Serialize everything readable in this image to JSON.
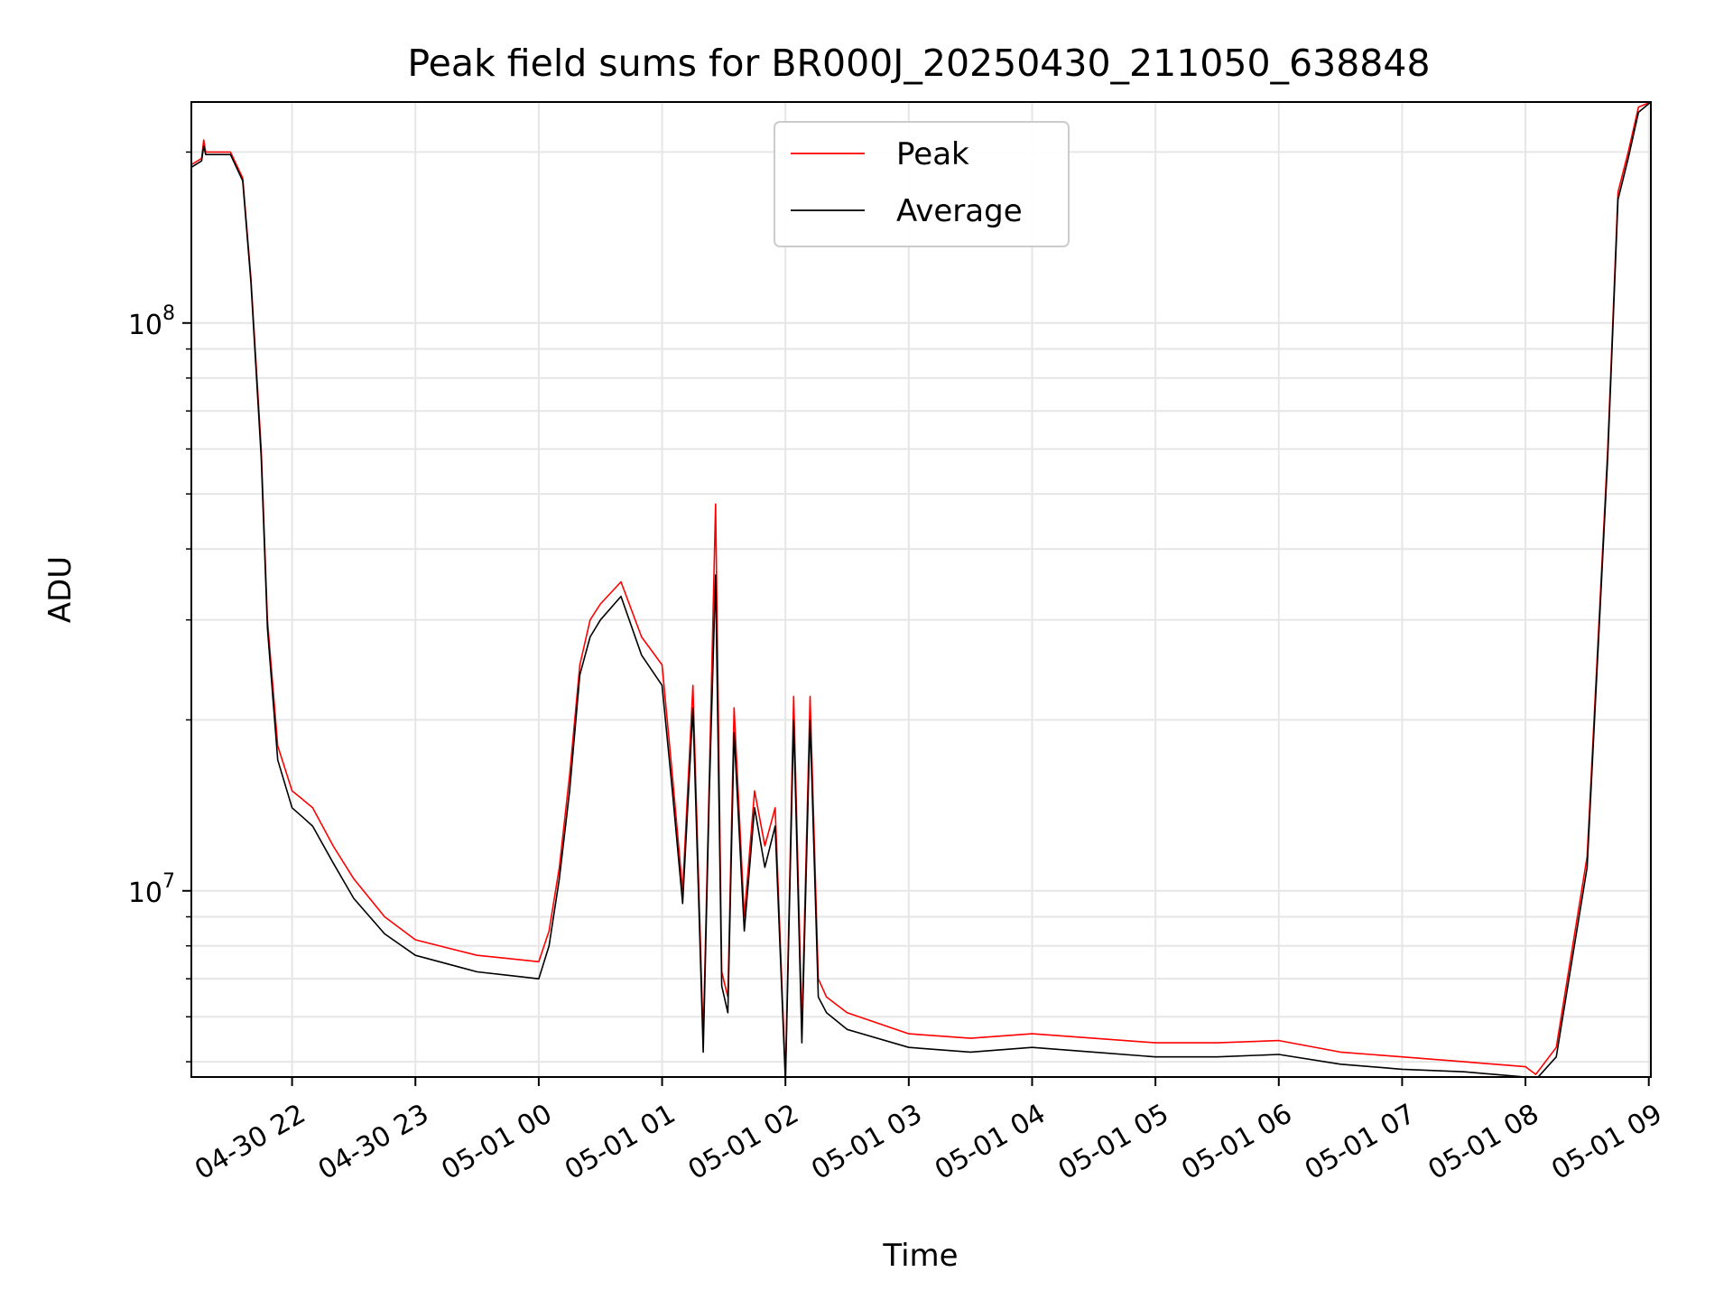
{
  "chart_data": {
    "type": "line",
    "title": "Peak field sums for BR000J_20250430_211050_638848",
    "xlabel": "Time",
    "ylabel": "ADU",
    "yscale": "log",
    "ylim": [
      4700000,
      245000000
    ],
    "xlim": [
      "04-30 21:11",
      "05-01 09:01"
    ],
    "x_ticks": [
      "04-30 22",
      "04-30 23",
      "05-01 00",
      "05-01 01",
      "05-01 02",
      "05-01 03",
      "05-01 04",
      "05-01 05",
      "05-01 06",
      "05-01 07",
      "05-01 08",
      "05-01 09"
    ],
    "y_tick_labels": [
      {
        "value": 100000000,
        "base": "10",
        "exp": "8"
      },
      {
        "value": 10000000,
        "base": "10",
        "exp": "7"
      }
    ],
    "grid": true,
    "legend": {
      "placement": "upper center",
      "entries": [
        "Peak",
        "Average"
      ]
    },
    "series": [
      {
        "name": "Peak",
        "color": "#ff0000",
        "x": [
          "04-30 21:11",
          "04-30 21:16",
          "04-30 21:17",
          "04-30 21:18",
          "04-30 21:20",
          "04-30 21:30",
          "04-30 21:36",
          "04-30 21:40",
          "04-30 21:45",
          "04-30 21:48",
          "04-30 21:53",
          "04-30 22:00",
          "04-30 22:05",
          "04-30 22:10",
          "04-30 22:20",
          "04-30 22:30",
          "04-30 22:45",
          "04-30 23:00",
          "04-30 23:30",
          "04-30 23:45",
          "05-01 00:00",
          "05-01 00:05",
          "05-01 00:10",
          "05-01 00:15",
          "05-01 00:20",
          "05-01 00:25",
          "05-01 00:30",
          "05-01 00:40",
          "05-01 00:50",
          "05-01 01:00",
          "05-01 01:05",
          "05-01 01:10",
          "05-01 01:15",
          "05-01 01:20",
          "05-01 01:23",
          "05-01 01:26",
          "05-01 01:29",
          "05-01 01:32",
          "05-01 01:35",
          "05-01 01:40",
          "05-01 01:45",
          "05-01 01:50",
          "05-01 01:55",
          "05-01 02:00",
          "05-01 02:04",
          "05-01 02:08",
          "05-01 02:12",
          "05-01 02:16",
          "05-01 02:20",
          "05-01 02:30",
          "05-01 03:00",
          "05-01 03:30",
          "05-01 04:00",
          "05-01 04:30",
          "05-01 05:00",
          "05-01 05:30",
          "05-01 06:00",
          "05-01 06:30",
          "05-01 07:00",
          "05-01 07:30",
          "05-01 08:00",
          "05-01 08:05",
          "05-01 08:15",
          "05-01 08:30",
          "05-01 08:40",
          "05-01 08:45",
          "05-01 08:50",
          "05-01 08:55",
          "05-01 09:01"
        ],
        "values": [
          190000000,
          195000000,
          210000000,
          200000000,
          200000000,
          200000000,
          180000000,
          120000000,
          60000000,
          30000000,
          18000000,
          15000000,
          14500000,
          14000000,
          12000000,
          10500000,
          9000000,
          8200000,
          7700000,
          7600000,
          7500000,
          8500000,
          11000000,
          16000000,
          25000000,
          30000000,
          32000000,
          35000000,
          28000000,
          25000000,
          16000000,
          10000000,
          23000000,
          5500000,
          16000000,
          48000000,
          7200000,
          6500000,
          21000000,
          9000000,
          15000000,
          12000000,
          14000000,
          4700000,
          22000000,
          5800000,
          22000000,
          7000000,
          6500000,
          6100000,
          5600000,
          5500000,
          5600000,
          5500000,
          5400000,
          5400000,
          5450000,
          5200000,
          5100000,
          5000000,
          4900000,
          4750000,
          5300000,
          11500000,
          60000000,
          170000000,
          200000000,
          240000000,
          245000000
        ]
      },
      {
        "name": "Average",
        "color": "#000000",
        "x": [
          "04-30 21:11",
          "04-30 21:16",
          "04-30 21:17",
          "04-30 21:18",
          "04-30 21:20",
          "04-30 21:30",
          "04-30 21:36",
          "04-30 21:40",
          "04-30 21:45",
          "04-30 21:48",
          "04-30 21:53",
          "04-30 22:00",
          "04-30 22:05",
          "04-30 22:10",
          "04-30 22:20",
          "04-30 22:30",
          "04-30 22:45",
          "04-30 23:00",
          "04-30 23:30",
          "04-30 23:45",
          "05-01 00:00",
          "05-01 00:05",
          "05-01 00:10",
          "05-01 00:15",
          "05-01 00:20",
          "05-01 00:25",
          "05-01 00:30",
          "05-01 00:40",
          "05-01 00:50",
          "05-01 01:00",
          "05-01 01:05",
          "05-01 01:10",
          "05-01 01:15",
          "05-01 01:20",
          "05-01 01:23",
          "05-01 01:26",
          "05-01 01:29",
          "05-01 01:32",
          "05-01 01:35",
          "05-01 01:40",
          "05-01 01:45",
          "05-01 01:50",
          "05-01 01:55",
          "05-01 02:00",
          "05-01 02:04",
          "05-01 02:08",
          "05-01 02:12",
          "05-01 02:16",
          "05-01 02:20",
          "05-01 02:30",
          "05-01 03:00",
          "05-01 03:30",
          "05-01 04:00",
          "05-01 04:30",
          "05-01 05:00",
          "05-01 05:30",
          "05-01 06:00",
          "05-01 06:30",
          "05-01 07:00",
          "05-01 07:30",
          "05-01 08:00",
          "05-01 08:05",
          "05-01 08:15",
          "05-01 08:30",
          "05-01 08:40",
          "05-01 08:45",
          "05-01 08:50",
          "05-01 08:55",
          "05-01 09:01"
        ],
        "values": [
          188000000,
          193000000,
          205000000,
          198000000,
          198000000,
          198000000,
          178000000,
          118000000,
          58000000,
          29000000,
          17000000,
          14000000,
          13500000,
          13000000,
          11200000,
          9700000,
          8400000,
          7700000,
          7200000,
          7100000,
          7000000,
          8000000,
          10500000,
          15000000,
          24000000,
          28000000,
          30000000,
          33000000,
          26000000,
          23000000,
          15000000,
          9500000,
          21000000,
          5200000,
          15000000,
          36000000,
          6800000,
          6100000,
          19000000,
          8500000,
          14000000,
          11000000,
          13000000,
          4600000,
          20000000,
          5400000,
          20000000,
          6500000,
          6100000,
          5700000,
          5300000,
          5200000,
          5300000,
          5200000,
          5100000,
          5100000,
          5150000,
          4950000,
          4850000,
          4800000,
          4700000,
          4650000,
          5100000,
          11000000,
          58000000,
          165000000,
          195000000,
          235000000,
          245000000
        ]
      }
    ]
  }
}
